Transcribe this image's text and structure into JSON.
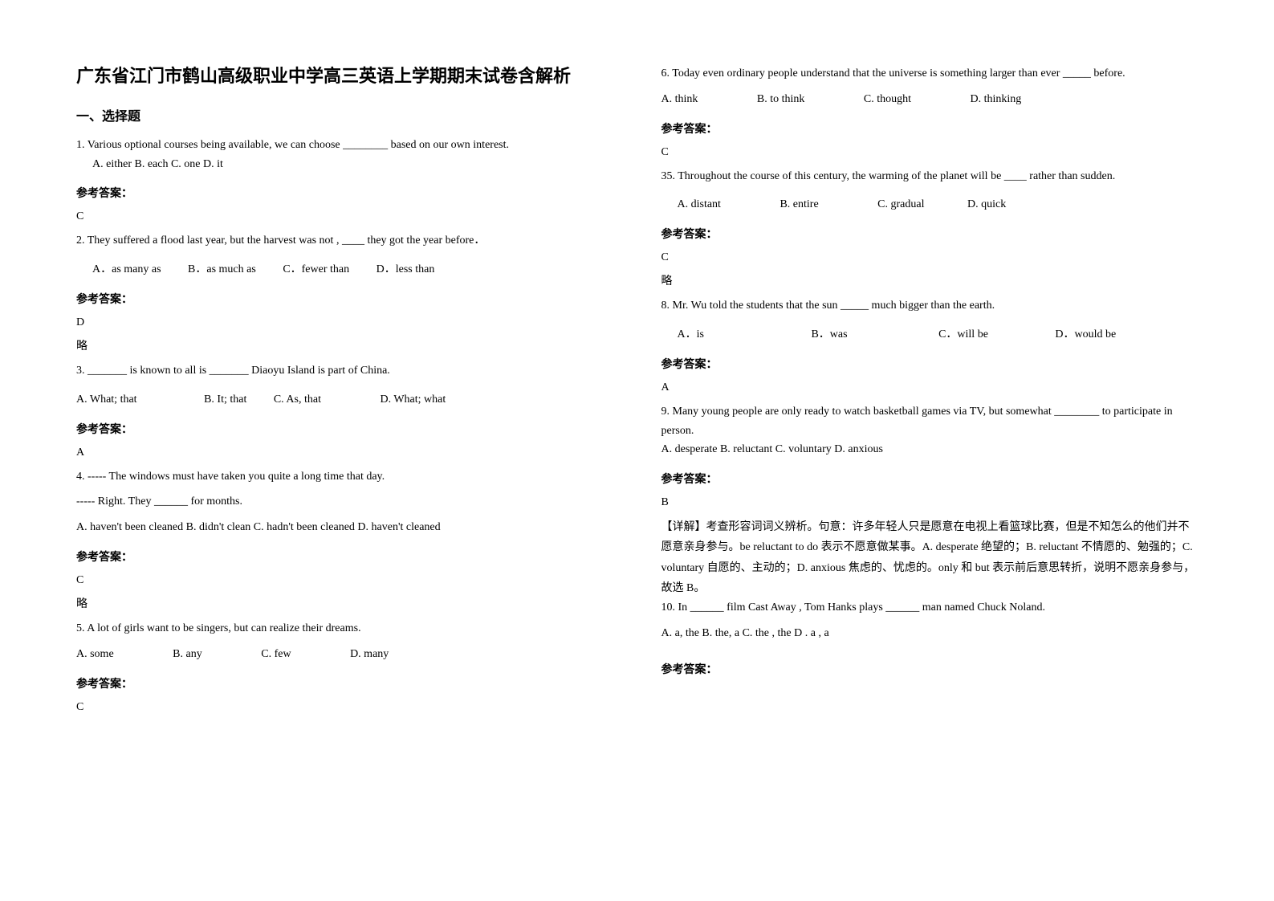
{
  "title": "广东省江门市鹤山高级职业中学高三英语上学期期末试卷含解析",
  "section1_heading": "一、选择题",
  "q1": {
    "text": "1. Various optional courses being available, we can choose ________ based on our own interest.",
    "options": "A. either     B. each  C. one               D. it",
    "answer_label": "参考答案：",
    "answer": "C"
  },
  "q2": {
    "text": "2. They suffered a flood last year, but the harvest was not , ____ they got the year before．",
    "optA": "A．as many as",
    "optB": "B．as much as",
    "optC": "C．fewer than",
    "optD": "D．less than",
    "answer_label": "参考答案：",
    "answer": "D",
    "note": "略"
  },
  "q3": {
    "text": "3. _______ is known to all is _______ Diaoyu Island is part of China.",
    "optA": "A. What; that",
    "optB": "B. It; that",
    "optC": "C. As, that",
    "optD": "D. What; what",
    "answer_label": "参考答案：",
    "answer": "A"
  },
  "q4": {
    "line1": "4. ----- The windows must have taken you quite a long time that day.",
    "line2": " ----- Right. They ______ for months.",
    "options": " A. haven't been cleaned     B. didn't clean      C. hadn't been cleaned    D. haven't cleaned",
    "answer_label": "参考答案：",
    "answer": "C",
    "note": "略"
  },
  "q5": {
    "text": "5. A lot of girls want to be singers, but    can realize their dreams.",
    "optA": "A. some",
    "optB": "B. any",
    "optC": "C. few",
    "optD": "D. many",
    "answer_label": "参考答案：",
    "answer": "C"
  },
  "q6": {
    "text": "6. Today even ordinary people understand that the universe is something larger than ever _____ before.",
    "optA": "A. think",
    "optB": "B. to think",
    "optC": "C. thought",
    "optD": "D. thinking",
    "answer_label": "参考答案：",
    "answer": "C"
  },
  "q7": {
    "text": "35. Throughout the course of this century, the warming of the planet will be ____ rather than sudden.",
    "optA": "A. distant",
    "optB": "B. entire",
    "optC": "C. gradual",
    "optD": "D. quick",
    "answer_label": "参考答案：",
    "answer": "C",
    "note": "略"
  },
  "q8": {
    "text": "8. Mr. Wu told the students that the sun _____ much bigger than the earth.",
    "optA": "A．is",
    "optB": "B．was",
    "optC": "C．will be",
    "optD": "D．would be",
    "answer_label": "参考答案：",
    "answer": "A"
  },
  "q9": {
    "line1": "9. Many young people are only ready to watch basketball games via TV, but somewhat ________ to participate in person.",
    "options": "A. desperate    B. reluctant      C. voluntary     D. anxious",
    "answer_label": "参考答案：",
    "answer": "B",
    "explain": "【详解】考查形容词词义辨析。句意：许多年轻人只是愿意在电视上看篮球比赛，但是不知怎么的他们并不愿意亲身参与。be reluctant to do 表示不愿意做某事。A. desperate 绝望的；B. reluctant 不情愿的、勉强的；C. voluntary 自愿的、主动的；D. anxious 焦虑的、忧虑的。only 和 but 表示前后意思转折，说明不愿亲身参与，故选 B。"
  },
  "q10": {
    "text": "10. In ______ film Cast Away , Tom Hanks plays ______ man named Chuck Noland.",
    "options": "A. a, the      B. the, a      C. the , the        D . a , a",
    "answer_label": "参考答案："
  }
}
